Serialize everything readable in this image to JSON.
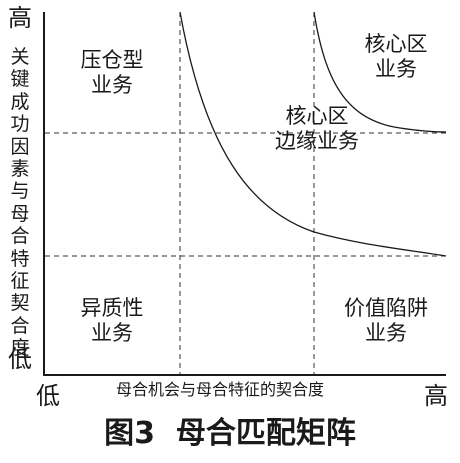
{
  "axes": {
    "y_high": "高",
    "y_low": "低",
    "y_label": "关键成功因素与母合特征契合度",
    "x_low": "低",
    "x_high": "高",
    "x_label": "母合机会与母合特征的契合度"
  },
  "zones": {
    "top_left": "压仓型\n业务",
    "top_right": "核心区\n业务",
    "middle": "核心区\n边缘业务",
    "bottom_left": "异质性\n业务",
    "bottom_right": "价值陷阱\n业务"
  },
  "caption": "图3  母合匹配矩阵",
  "colors": {
    "line": "#1a1a1a",
    "dashed": "#333333",
    "text": "#1a1a1a"
  }
}
